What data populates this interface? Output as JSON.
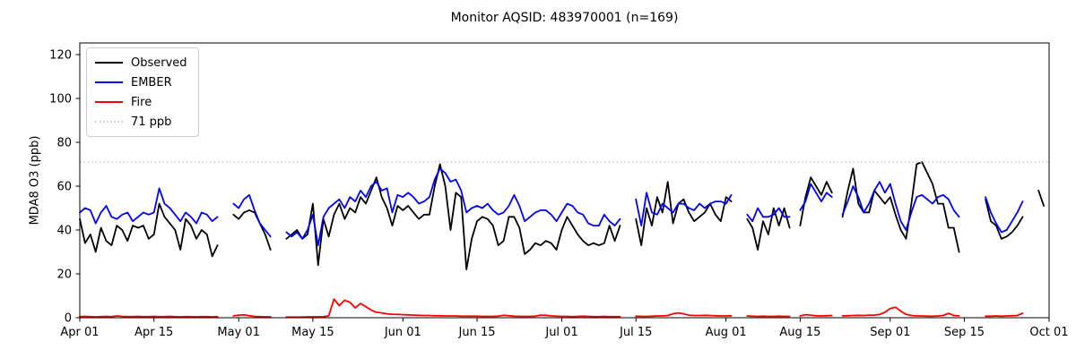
{
  "figure": {
    "background": "#ffffff"
  },
  "chart_data": {
    "type": "line",
    "title": "Monitor AQSID: 483970001 (n=169)",
    "xlabel": "",
    "ylabel": "MDA8 O3 (ppb)",
    "ylim": [
      0,
      125.3
    ],
    "yticks": [
      0,
      20,
      40,
      60,
      80,
      100,
      120
    ],
    "x_unit": "days since Apr 01, daily cadence, range Apr 01 - Oct 01",
    "x_days_total": 183,
    "grid": false,
    "legend_position": "upper left",
    "xticks": [
      {
        "label": "Apr 01",
        "day": 0
      },
      {
        "label": "Apr 15",
        "day": 14
      },
      {
        "label": "May 01",
        "day": 30
      },
      {
        "label": "May 15",
        "day": 44
      },
      {
        "label": "Jun 01",
        "day": 61
      },
      {
        "label": "Jun 15",
        "day": 75
      },
      {
        "label": "Jul 01",
        "day": 91
      },
      {
        "label": "Jul 15",
        "day": 105
      },
      {
        "label": "Aug 01",
        "day": 122
      },
      {
        "label": "Aug 15",
        "day": 136
      },
      {
        "label": "Sep 01",
        "day": 153
      },
      {
        "label": "Sep 15",
        "day": 167
      },
      {
        "label": "Oct 01",
        "day": 183
      }
    ],
    "threshold": {
      "label": "71 ppb",
      "value": 71,
      "color": "#d3d3d3",
      "style": "dotted"
    },
    "series": [
      {
        "name": "Observed",
        "color": "#000000",
        "values": [
          45,
          34,
          38,
          30,
          41,
          35,
          33,
          42,
          40,
          35,
          42,
          41,
          42,
          36,
          38,
          52,
          46,
          43,
          40,
          31,
          45,
          42,
          36,
          40,
          38,
          28,
          33,
          null,
          null,
          47,
          45,
          48,
          49,
          48,
          43,
          38,
          31,
          null,
          null,
          36,
          38,
          40,
          36,
          38,
          52,
          24,
          45,
          37,
          47,
          52,
          45,
          50,
          48,
          55,
          52,
          58,
          64,
          55,
          50,
          42,
          51,
          49,
          51,
          48,
          45,
          47,
          47,
          60,
          70,
          60,
          40,
          57,
          55,
          22,
          36,
          44,
          46,
          45,
          42,
          33,
          35,
          46,
          46,
          41,
          29,
          31,
          34,
          33,
          35,
          34,
          31,
          40,
          46,
          42,
          38,
          35,
          33,
          34,
          33,
          34,
          42,
          35,
          42,
          null,
          null,
          45,
          33,
          50,
          42,
          55,
          48,
          62,
          43,
          52,
          54,
          48,
          44,
          46,
          48,
          52,
          47,
          44,
          55,
          53,
          null,
          null,
          45,
          41,
          31,
          44,
          38,
          50,
          42,
          50,
          41,
          null,
          42,
          55,
          64,
          60,
          56,
          62,
          57,
          null,
          46,
          58,
          68,
          52,
          48,
          48,
          58,
          55,
          52,
          55,
          47,
          40,
          36,
          52,
          70,
          71,
          66,
          61,
          52,
          52,
          41,
          41,
          30,
          null,
          null,
          null,
          null,
          54,
          44,
          42,
          36,
          37,
          39,
          42,
          46,
          null,
          null,
          58,
          51,
          null
        ]
      },
      {
        "name": "EMBER",
        "color": "#0000ff",
        "values": [
          48,
          50,
          49,
          43,
          48,
          51,
          46,
          45,
          47,
          48,
          44,
          46,
          48,
          47,
          48,
          59,
          52,
          50,
          47,
          44,
          48,
          46,
          43,
          48,
          47,
          44,
          46,
          null,
          null,
          52,
          50,
          54,
          56,
          49,
          43,
          40,
          37,
          null,
          null,
          39,
          37,
          39,
          36,
          40,
          47,
          33,
          46,
          50,
          52,
          54,
          50,
          55,
          53,
          58,
          55,
          60,
          62,
          58,
          59,
          48,
          56,
          55,
          57,
          55,
          52,
          53,
          55,
          63,
          68,
          66,
          62,
          63,
          58,
          48,
          50,
          51,
          50,
          52,
          49,
          47,
          48,
          51,
          56,
          51,
          44,
          46,
          48,
          49,
          49,
          47,
          44,
          48,
          52,
          51,
          48,
          47,
          43,
          42,
          42,
          47,
          44,
          42,
          45,
          null,
          null,
          54,
          42,
          57,
          48,
          47,
          52,
          50,
          48,
          52,
          52,
          50,
          49,
          52,
          50,
          52,
          53,
          53,
          52,
          56,
          null,
          null,
          47,
          44,
          50,
          46,
          46,
          47,
          50,
          46,
          46,
          null,
          49,
          53,
          61,
          57,
          53,
          57,
          55,
          null,
          47,
          53,
          60,
          55,
          48,
          52,
          58,
          62,
          57,
          61,
          52,
          44,
          40,
          48,
          55,
          56,
          54,
          52,
          55,
          56,
          54,
          49,
          46,
          null,
          null,
          null,
          null,
          55,
          48,
          43,
          39,
          40,
          44,
          48,
          53,
          null,
          null,
          null,
          null,
          null
        ]
      },
      {
        "name": "Fire",
        "color": "#ff0000",
        "values": [
          0.5,
          0.6,
          0.5,
          0.4,
          0.5,
          0.6,
          0.5,
          0.8,
          0.6,
          0.5,
          0.5,
          0.6,
          0.5,
          0.5,
          0.6,
          0.5,
          0.5,
          0.6,
          0.5,
          0.4,
          0.5,
          0.5,
          0.4,
          0.5,
          0.5,
          0.4,
          0.5,
          null,
          null,
          0.8,
          1.2,
          1.3,
          0.9,
          0.6,
          0.5,
          0.4,
          0.4,
          null,
          null,
          0.3,
          0.3,
          0.3,
          0.3,
          0.4,
          0.4,
          0.4,
          0.5,
          0.8,
          8.5,
          5.5,
          8.0,
          7.0,
          4.5,
          6.5,
          5.0,
          3.5,
          2.5,
          2.2,
          1.8,
          1.6,
          1.5,
          1.4,
          1.3,
          1.2,
          1.1,
          1.0,
          1.0,
          0.9,
          0.9,
          0.8,
          0.8,
          0.8,
          0.7,
          0.7,
          0.7,
          0.7,
          0.6,
          0.6,
          0.6,
          0.7,
          1.1,
          0.9,
          0.7,
          0.6,
          0.6,
          0.6,
          0.7,
          1.2,
          1.1,
          0.8,
          0.7,
          0.6,
          0.6,
          0.5,
          0.6,
          0.7,
          0.6,
          0.5,
          0.5,
          0.6,
          0.5,
          0.5,
          0.5,
          null,
          null,
          0.7,
          0.6,
          0.6,
          0.7,
          0.8,
          0.8,
          1.0,
          1.8,
          2.2,
          1.8,
          1.2,
          1.0,
          1.0,
          1.1,
          1.0,
          0.9,
          0.8,
          0.8,
          0.9,
          null,
          null,
          0.8,
          0.7,
          0.6,
          0.7,
          0.6,
          0.6,
          0.7,
          0.6,
          0.6,
          null,
          0.8,
          1.4,
          1.2,
          0.9,
          0.8,
          0.9,
          1.0,
          null,
          0.8,
          0.9,
          1.0,
          1.1,
          1.0,
          1.2,
          1.2,
          1.5,
          2.5,
          4.2,
          4.8,
          3.0,
          1.5,
          1.0,
          0.8,
          0.8,
          0.7,
          0.7,
          0.8,
          1.0,
          2.0,
          1.0,
          0.8,
          null,
          null,
          null,
          null,
          0.7,
          0.7,
          0.8,
          0.7,
          0.8,
          0.9,
          1.0,
          2.0,
          null,
          null,
          null,
          null,
          null
        ]
      }
    ]
  }
}
